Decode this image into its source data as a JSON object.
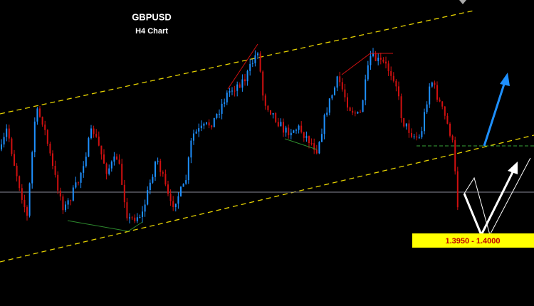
{
  "chart_data": {
    "type": "candlestick",
    "title": "GBPUSD",
    "subtitle": "H4 Chart",
    "annotation": "1.3950 - 1.4000"
  }
}
